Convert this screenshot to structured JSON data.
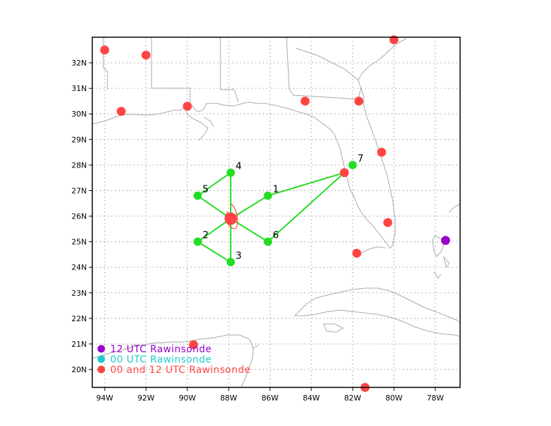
{
  "chart_data": {
    "type": "map",
    "xlim": [
      -94.6,
      -76.8
    ],
    "ylim": [
      19.3,
      33.0
    ],
    "grid": true,
    "x_ticks": [
      {
        "value": -94,
        "label": "94W"
      },
      {
        "value": -92,
        "label": "92W"
      },
      {
        "value": -90,
        "label": "90W"
      },
      {
        "value": -88,
        "label": "88W"
      },
      {
        "value": -86,
        "label": "86W"
      },
      {
        "value": -84,
        "label": "84W"
      },
      {
        "value": -82,
        "label": "82W"
      },
      {
        "value": -80,
        "label": "80W"
      },
      {
        "value": -78,
        "label": "78W"
      }
    ],
    "y_ticks": [
      {
        "value": 20,
        "label": "20N"
      },
      {
        "value": 21,
        "label": "21N"
      },
      {
        "value": 22,
        "label": "22N"
      },
      {
        "value": 23,
        "label": "23N"
      },
      {
        "value": 24,
        "label": "24N"
      },
      {
        "value": 25,
        "label": "25N"
      },
      {
        "value": 26,
        "label": "26N"
      },
      {
        "value": 27,
        "label": "27N"
      },
      {
        "value": 28,
        "label": "28N"
      },
      {
        "value": 29,
        "label": "29N"
      },
      {
        "value": 30,
        "label": "30N"
      },
      {
        "value": 31,
        "label": "31N"
      },
      {
        "value": 32,
        "label": "32N"
      }
    ],
    "legend": {
      "placement": "bottom-left",
      "entries": [
        {
          "label": "12 UTC Rawinsonde",
          "color": "#9900cc"
        },
        {
          "label": "00 UTC Rawinsonde",
          "color": "#22cccc"
        },
        {
          "label": "00 and 12 UTC Rawinsonde",
          "color": "#ff4444"
        }
      ]
    },
    "colors": {
      "flight_track": "#22dd22",
      "dropsonde_point": "#22dd22",
      "rawinsonde_both": "#ff4444",
      "rawinsonde_12": "#9900cc",
      "storm_center": "#ff4444",
      "coastline": "#a8a8a8"
    },
    "storm_center": {
      "lon": -87.9,
      "lat": 25.9
    },
    "flight_track": [
      {
        "lon": -82.4,
        "lat": 27.7
      },
      {
        "lon": -86.1,
        "lat": 26.8
      },
      {
        "lon": -87.9,
        "lat": 25.9
      },
      {
        "lon": -89.5,
        "lat": 25.0
      },
      {
        "lon": -87.9,
        "lat": 24.2
      },
      {
        "lon": -87.9,
        "lat": 27.7
      },
      {
        "lon": -89.5,
        "lat": 26.8
      },
      {
        "lon": -87.9,
        "lat": 25.9
      },
      {
        "lon": -86.1,
        "lat": 25.0
      },
      {
        "lon": -82.4,
        "lat": 27.7
      }
    ],
    "dropsondes": [
      {
        "label": "1",
        "lon": -86.1,
        "lat": 26.8
      },
      {
        "label": "2",
        "lon": -89.5,
        "lat": 25.0
      },
      {
        "label": "3",
        "lon": -87.9,
        "lat": 24.2
      },
      {
        "label": "4",
        "lon": -87.9,
        "lat": 27.7
      },
      {
        "label": "5",
        "lon": -89.5,
        "lat": 26.8
      },
      {
        "label": "6",
        "lon": -86.1,
        "lat": 25.0
      },
      {
        "label": "7",
        "lon": -82.0,
        "lat": 28.0
      }
    ],
    "rawinsondes_both": [
      {
        "lon": -94.0,
        "lat": 32.5
      },
      {
        "lon": -92.0,
        "lat": 32.3
      },
      {
        "lon": -93.2,
        "lat": 30.1
      },
      {
        "lon": -90.0,
        "lat": 30.3
      },
      {
        "lon": -84.3,
        "lat": 30.5
      },
      {
        "lon": -81.7,
        "lat": 30.5
      },
      {
        "lon": -80.0,
        "lat": 32.9
      },
      {
        "lon": -80.6,
        "lat": 28.5
      },
      {
        "lon": -82.4,
        "lat": 27.7
      },
      {
        "lon": -80.3,
        "lat": 25.75
      },
      {
        "lon": -81.8,
        "lat": 24.55
      },
      {
        "lon": -89.7,
        "lat": 20.97
      },
      {
        "lon": -81.4,
        "lat": 19.3
      }
    ],
    "rawinsondes_12": [
      {
        "lon": -77.5,
        "lat": 25.05
      }
    ]
  }
}
